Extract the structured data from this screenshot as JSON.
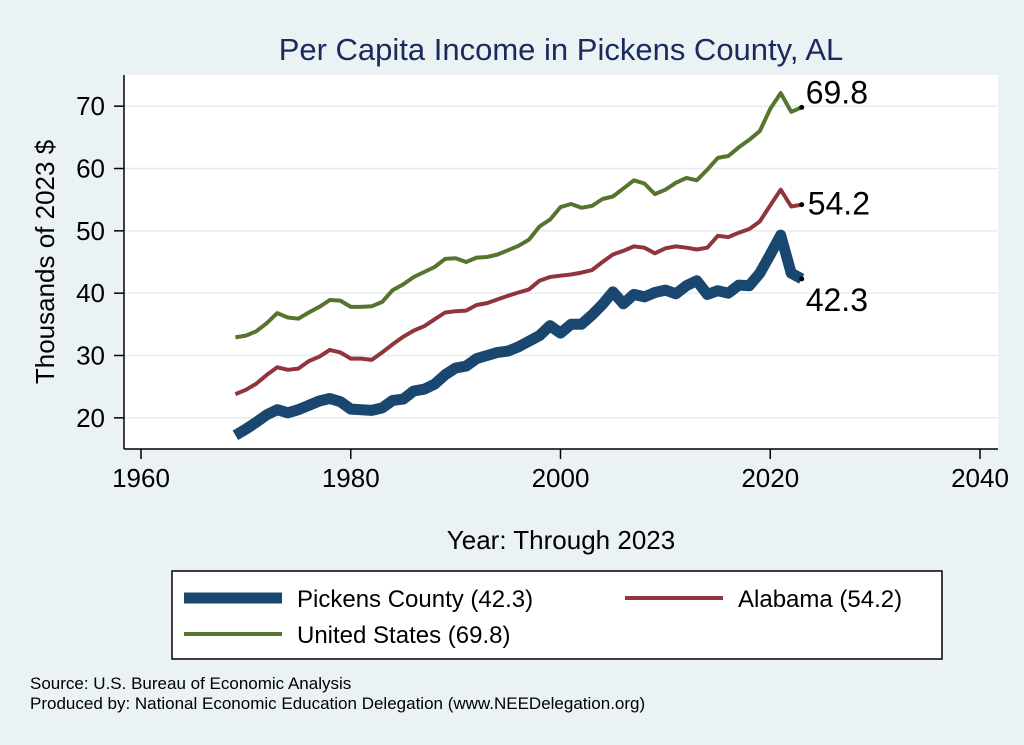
{
  "chart_data": {
    "type": "line",
    "title": "Per Capita Income in Pickens County, AL",
    "xlabel": "Year: Through 2023",
    "ylabel": "Thousands of 2023 $",
    "xlim": [
      1960,
      2040
    ],
    "ylim": [
      15,
      75
    ],
    "xticks": [
      "1960",
      "1980",
      "2000",
      "2020",
      "2040"
    ],
    "yticks": [
      "20",
      "30",
      "40",
      "50",
      "60",
      "70"
    ],
    "grid": "horizontal",
    "legend_position": "bottom",
    "x": [
      1969,
      1970,
      1971,
      1972,
      1973,
      1974,
      1975,
      1976,
      1977,
      1978,
      1979,
      1980,
      1981,
      1982,
      1983,
      1984,
      1985,
      1986,
      1987,
      1988,
      1989,
      1990,
      1991,
      1992,
      1993,
      1994,
      1995,
      1996,
      1997,
      1998,
      1999,
      2000,
      2001,
      2002,
      2003,
      2004,
      2005,
      2006,
      2007,
      2008,
      2009,
      2010,
      2011,
      2012,
      2013,
      2014,
      2015,
      2016,
      2017,
      2018,
      2019,
      2020,
      2021,
      2022,
      2023
    ],
    "series": [
      {
        "name": "Pickens County (42.3)",
        "color": "#1a476f",
        "width": 11,
        "end_label": "42.3",
        "values": [
          17.2,
          18.2,
          19.3,
          20.5,
          21.3,
          20.8,
          21.3,
          22.0,
          22.7,
          23.1,
          22.6,
          21.4,
          21.3,
          21.2,
          21.6,
          22.8,
          23.0,
          24.3,
          24.6,
          25.4,
          26.9,
          28.0,
          28.3,
          29.5,
          30.0,
          30.5,
          30.7,
          31.4,
          32.3,
          33.2,
          34.8,
          33.6,
          35.0,
          35.0,
          36.5,
          38.2,
          40.2,
          38.3,
          39.8,
          39.4,
          40.1,
          40.5,
          39.9,
          41.2,
          42.0,
          39.8,
          40.4,
          40.0,
          41.3,
          41.2,
          43.2,
          46.2,
          49.3,
          43.2,
          42.3
        ]
      },
      {
        "name": "Alabama (54.2)",
        "color": "#90353b",
        "width": 4,
        "end_label": "54.2",
        "values": [
          23.8,
          24.5,
          25.5,
          26.9,
          28.1,
          27.7,
          27.9,
          29.1,
          29.8,
          30.9,
          30.5,
          29.5,
          29.5,
          29.3,
          30.5,
          31.8,
          33.0,
          34.0,
          34.7,
          35.8,
          36.9,
          37.1,
          37.2,
          38.1,
          38.4,
          39.0,
          39.6,
          40.1,
          40.6,
          42.0,
          42.6,
          42.8,
          43.0,
          43.3,
          43.7,
          45.0,
          46.2,
          46.8,
          47.5,
          47.3,
          46.4,
          47.2,
          47.5,
          47.3,
          47.0,
          47.3,
          49.2,
          49.0,
          49.7,
          50.3,
          51.5,
          54.1,
          56.6,
          53.9,
          54.2
        ]
      },
      {
        "name": "United States (69.8)",
        "color": "#55752f",
        "width": 4,
        "end_label": "69.8",
        "values": [
          32.9,
          33.2,
          33.9,
          35.2,
          36.8,
          36.1,
          35.9,
          36.9,
          37.8,
          38.9,
          38.8,
          37.8,
          37.8,
          37.9,
          38.6,
          40.5,
          41.4,
          42.6,
          43.4,
          44.2,
          45.5,
          45.6,
          45.0,
          45.7,
          45.8,
          46.2,
          46.9,
          47.6,
          48.6,
          50.7,
          51.8,
          53.8,
          54.3,
          53.7,
          54.0,
          55.1,
          55.5,
          56.8,
          58.1,
          57.6,
          55.9,
          56.6,
          57.7,
          58.5,
          58.1,
          59.8,
          61.7,
          62.0,
          63.4,
          64.6,
          66.0,
          69.6,
          72.1,
          69.1,
          69.8
        ]
      }
    ]
  },
  "source_text": "Source: U.S. Bureau of Economic Analysis",
  "produced_text": "Produced by: National Economic Education Delegation (www.NEEDelegation.org)"
}
